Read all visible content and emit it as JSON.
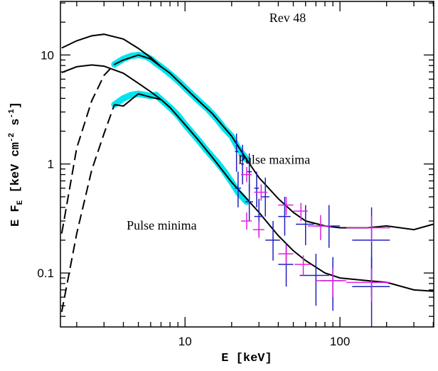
{
  "chart_data": {
    "type": "line",
    "xlog": true,
    "ylog": true,
    "xlabel": "E [keV]",
    "ylabel": [
      "E F",
      "E",
      " [keV cm",
      "-2",
      " s",
      "-1",
      "]"
    ],
    "annotations": [
      {
        "text": "Rev 48",
        "x": 35,
        "y": 20
      },
      {
        "text": "Pulse maxima",
        "x": 22,
        "y": 1
      },
      {
        "text": "Pulse minima",
        "x": 4.2,
        "y": 0.25
      }
    ],
    "xlim": [
      1.57,
      403
    ],
    "ylim": [
      0.032,
      31
    ],
    "xticks": [
      10,
      100
    ],
    "yticks": [
      0.1,
      1,
      10
    ],
    "xminor": [
      2,
      3,
      4,
      5,
      6,
      7,
      8,
      9,
      20,
      30,
      40,
      50,
      60,
      70,
      80,
      90,
      200,
      300,
      400
    ],
    "yminor": [
      0.04,
      0.05,
      0.06,
      0.07,
      0.08,
      0.09,
      0.2,
      0.3,
      0.4,
      0.5,
      0.6,
      0.7,
      0.8,
      0.9,
      2,
      3,
      4,
      5,
      6,
      7,
      8,
      9,
      20,
      30
    ],
    "series": [
      {
        "style": "band",
        "color": "#00e5ee",
        "x": [
          3.5,
          4,
          4.5,
          5,
          5.5,
          6,
          6.5,
          7,
          8,
          9,
          10,
          12,
          14,
          16,
          18,
          20,
          22,
          25
        ],
        "values": [
          8.2,
          9.2,
          9.8,
          10,
          9.8,
          9.2,
          8.4,
          7.8,
          6.7,
          5.8,
          5.0,
          3.9,
          3.2,
          2.6,
          2.1,
          1.8,
          1.4,
          1.1
        ]
      },
      {
        "style": "band",
        "color": "#00e5ee",
        "x": [
          3.5,
          4,
          4.5,
          5,
          5.5,
          6,
          6.5,
          7,
          8,
          9,
          10,
          12,
          14,
          16,
          18,
          20,
          22,
          25
        ],
        "values": [
          3.5,
          4,
          4.3,
          4.4,
          4.3,
          4.2,
          4.3,
          3.9,
          3.3,
          2.8,
          2.3,
          1.7,
          1.3,
          1.05,
          0.85,
          0.68,
          0.55,
          0.45
        ]
      },
      {
        "style": "line",
        "color": "#000000",
        "dash": false,
        "x": [
          1.6,
          2,
          2.5,
          3,
          4,
          5,
          6,
          7,
          8,
          10,
          12,
          15,
          20,
          25,
          30,
          40,
          50,
          60,
          80,
          100,
          150,
          200,
          300,
          400
        ],
        "values": [
          11.6,
          13.5,
          15,
          15.5,
          14,
          11.5,
          9.5,
          7.8,
          6.8,
          5.0,
          3.9,
          2.9,
          1.8,
          1.1,
          0.75,
          0.48,
          0.36,
          0.3,
          0.27,
          0.26,
          0.26,
          0.27,
          0.25,
          0.28
        ]
      },
      {
        "style": "line",
        "color": "#000000",
        "dash": true,
        "x": [
          1.6,
          2,
          2.5,
          3,
          3.5
        ],
        "values": [
          0.23,
          1.4,
          3.8,
          6.5,
          8.2
        ]
      },
      {
        "style": "line",
        "color": "#000000",
        "dash": false,
        "x": [
          3.5,
          4,
          5,
          6,
          7
        ],
        "values": [
          8.2,
          9,
          10,
          9.2,
          7.8
        ]
      },
      {
        "style": "line",
        "color": "#000000",
        "dash": false,
        "x": [
          1.6,
          2,
          2.5,
          3,
          4,
          5,
          6,
          7,
          8,
          10,
          12,
          15,
          20,
          25,
          30,
          40,
          50,
          60,
          80,
          100,
          150,
          200,
          300,
          400
        ],
        "values": [
          6.9,
          7.8,
          8.1,
          7.9,
          6.8,
          5.5,
          4.6,
          3.9,
          3.3,
          2.3,
          1.7,
          1.15,
          0.68,
          0.48,
          0.36,
          0.22,
          0.16,
          0.13,
          0.1,
          0.09,
          0.085,
          0.082,
          0.07,
          0.068
        ]
      },
      {
        "style": "line",
        "color": "#000000",
        "dash": true,
        "x": [
          1.6,
          2,
          2.5,
          3,
          3.5
        ],
        "values": [
          0.044,
          0.23,
          0.88,
          1.9,
          3.5
        ]
      },
      {
        "style": "line",
        "color": "#000000",
        "dash": false,
        "x": [
          3.5,
          4,
          5,
          6,
          7
        ],
        "values": [
          3.5,
          3.4,
          4.4,
          4.1,
          3.9
        ]
      },
      {
        "style": "errorbar",
        "color": "#1f1fbf",
        "x": [
          21.5,
          23.5,
          26,
          29,
          33,
          44,
          60,
          85,
          160
        ],
        "xlo": [
          21,
          23,
          25,
          28,
          31,
          40,
          52,
          70,
          120
        ],
        "xhi": [
          22,
          24,
          27,
          30,
          35,
          48,
          68,
          100,
          210
        ],
        "values": [
          1.3,
          1.0,
          0.85,
          0.6,
          0.5,
          0.33,
          0.28,
          0.27,
          0.2
        ],
        "ylo": [
          0.85,
          0.65,
          0.55,
          0.4,
          0.33,
          0.22,
          0.18,
          0.17,
          0.06
        ],
        "yhi": [
          1.9,
          1.5,
          1.25,
          0.85,
          0.75,
          0.5,
          0.42,
          0.42,
          0.4
        ]
      },
      {
        "style": "errorbar",
        "color": "#1f1fbf",
        "x": [
          22,
          26,
          30,
          37,
          45,
          70,
          90,
          160
        ],
        "xlo": [
          21,
          24.5,
          28,
          33,
          40,
          55,
          75,
          120
        ],
        "xhi": [
          23,
          27.5,
          32,
          41,
          50,
          85,
          105,
          210
        ],
        "values": [
          0.6,
          0.45,
          0.33,
          0.2,
          0.12,
          0.095,
          0.085,
          0.075
        ],
        "ylo": [
          0.4,
          0.3,
          0.22,
          0.13,
          0.075,
          0.05,
          0.045,
          0.032
        ],
        "yhi": [
          0.85,
          0.65,
          0.48,
          0.3,
          0.19,
          0.15,
          0.14,
          0.14
        ]
      },
      {
        "style": "errorbar",
        "color": "#e020e0",
        "x": [
          25,
          31,
          45,
          56,
          75,
          160
        ],
        "xlo": [
          23,
          28,
          40,
          50,
          62,
          110
        ],
        "xhi": [
          27,
          34,
          50,
          62,
          88,
          210
        ],
        "values": [
          0.8,
          0.55,
          0.42,
          0.37,
          0.27,
          0.26
        ],
        "ylo": [
          0.68,
          0.46,
          0.34,
          0.3,
          0.2,
          0.19
        ],
        "yhi": [
          0.94,
          0.65,
          0.5,
          0.44,
          0.34,
          0.33
        ]
      },
      {
        "style": "errorbar",
        "color": "#e020e0",
        "x": [
          25,
          30,
          45,
          58,
          90,
          160
        ],
        "xlo": [
          23,
          27.5,
          40,
          51,
          70,
          110
        ],
        "xhi": [
          27,
          32.5,
          50,
          65,
          110,
          210
        ],
        "values": [
          0.3,
          0.25,
          0.15,
          0.12,
          0.085,
          0.082
        ],
        "ylo": [
          0.25,
          0.21,
          0.12,
          0.095,
          0.06,
          0.055
        ],
        "yhi": [
          0.36,
          0.3,
          0.18,
          0.145,
          0.11,
          0.11
        ]
      }
    ]
  }
}
